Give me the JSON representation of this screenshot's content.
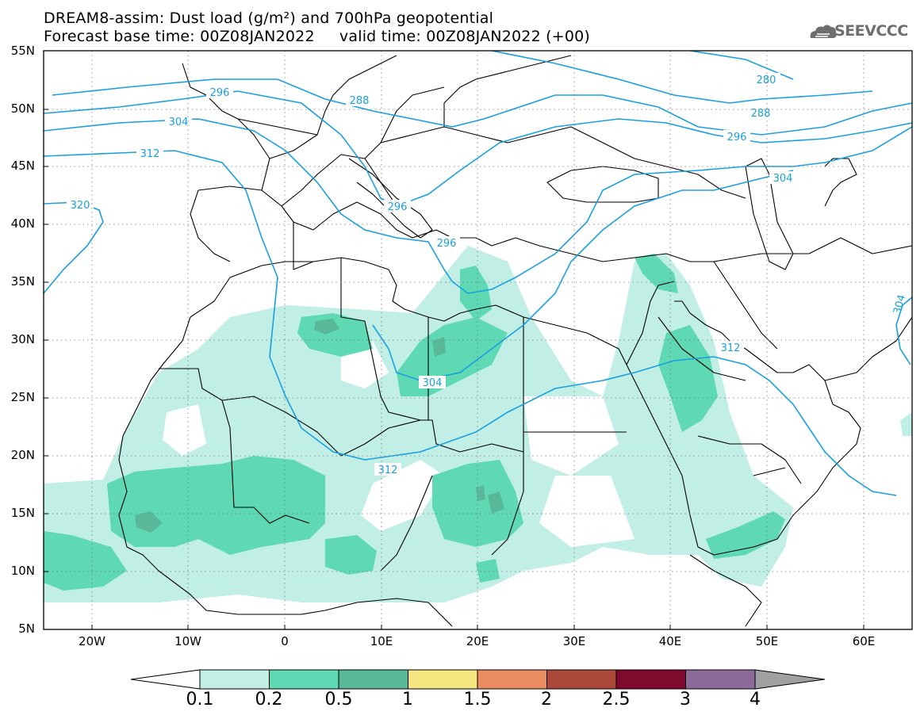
{
  "header": {
    "title_line1": "DREAM8-assim: Dust load (g/m²) and 700hPa geopotential",
    "title_line2": "Forecast base time: 00Z08JAN2022     valid time: 00Z08JAN2022 (+00)"
  },
  "logo": {
    "text": "SEEVCCC",
    "icon": "cloud-icon"
  },
  "axes": {
    "lat_labels": [
      "55N",
      "50N",
      "45N",
      "40N",
      "35N",
      "30N",
      "25N",
      "20N",
      "15N",
      "10N",
      "5N"
    ],
    "lon_labels": [
      "20W",
      "10W",
      "0",
      "10E",
      "20E",
      "30E",
      "40E",
      "50E",
      "60E"
    ],
    "lon_range": [
      -25,
      65
    ],
    "lat_range": [
      5,
      55
    ],
    "gridlines": "dotted"
  },
  "contours": {
    "variable": "700hPa geopotential",
    "color": "#1a9fe0",
    "labels": [
      "280",
      "288",
      "296",
      "304",
      "312",
      "320",
      "296",
      "304",
      "312",
      "288",
      "296",
      "296",
      "304",
      "312",
      "304"
    ]
  },
  "colorbar": {
    "labels": [
      "0.1",
      "0.2",
      "0.5",
      "1",
      "1.5",
      "2",
      "2.5",
      "3",
      "4"
    ],
    "colors": [
      "#c1efe6",
      "#5ed9b4",
      "#5ab89a",
      "#f5e67f",
      "#ea8d63",
      "#a9483b",
      "#800a2e",
      "#8c6b9b"
    ],
    "under_color": "#ffffff",
    "over_color": "#a0a0a0"
  },
  "dust_colors": {
    "light": "#c1efe6",
    "medium": "#5ed9b4",
    "dark": "#5ab89a"
  }
}
